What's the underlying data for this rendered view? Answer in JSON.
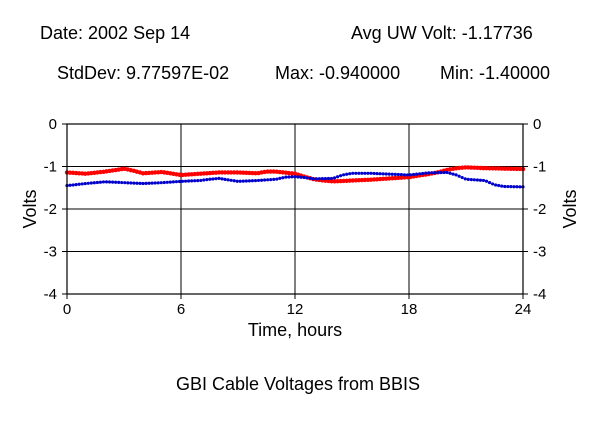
{
  "header": {
    "date": "Date: 2002 Sep 14",
    "avg": "Avg UW Volt: -1.17736",
    "stddev": "StdDev: 9.77597E-02",
    "max": "Max: -0.940000",
    "min": "Min: -1.40000"
  },
  "caption": "GBI Cable Voltages from BBIS",
  "chart_data": {
    "type": "scatter",
    "title": "",
    "xlabel": "Time, hours",
    "ylabel": "Volts",
    "xlim": [
      0,
      24
    ],
    "ylim": [
      -4,
      0
    ],
    "xticks": [
      "0",
      "6",
      "12",
      "18",
      "24"
    ],
    "yticks": [
      "0",
      "-1",
      "-2",
      "-3",
      "-4"
    ],
    "grid": true,
    "colors": {
      "red": "#ff0000",
      "blue": "#0000cc"
    },
    "series": [
      {
        "color": "#ff0000",
        "x": [
          0,
          1,
          2,
          2.6,
          3,
          3.5,
          4,
          5,
          6,
          7,
          8,
          9,
          10,
          10.5,
          11,
          12,
          12.5,
          13,
          13.5,
          14,
          15,
          16,
          17,
          18,
          19,
          19.5,
          20,
          20.5,
          21,
          22,
          23,
          24
        ],
        "y": [
          -1.14,
          -1.17,
          -1.12,
          -1.08,
          -1.05,
          -1.1,
          -1.16,
          -1.13,
          -1.2,
          -1.17,
          -1.14,
          -1.14,
          -1.16,
          -1.12,
          -1.12,
          -1.17,
          -1.24,
          -1.3,
          -1.33,
          -1.35,
          -1.33,
          -1.31,
          -1.28,
          -1.25,
          -1.18,
          -1.14,
          -1.08,
          -1.04,
          -1.02,
          -1.04,
          -1.05,
          -1.06
        ]
      },
      {
        "color": "#0000cc",
        "x": [
          0,
          1,
          2,
          3,
          4,
          5,
          6,
          7,
          7.5,
          8,
          9,
          10,
          11,
          11.5,
          12,
          12.5,
          13,
          14,
          14.5,
          15,
          16,
          17,
          18,
          19,
          20,
          20.5,
          21,
          22,
          22.5,
          23,
          24
        ],
        "y": [
          -1.45,
          -1.4,
          -1.36,
          -1.38,
          -1.4,
          -1.38,
          -1.35,
          -1.33,
          -1.3,
          -1.28,
          -1.35,
          -1.33,
          -1.3,
          -1.25,
          -1.24,
          -1.26,
          -1.29,
          -1.28,
          -1.2,
          -1.16,
          -1.16,
          -1.18,
          -1.2,
          -1.15,
          -1.14,
          -1.2,
          -1.3,
          -1.33,
          -1.43,
          -1.47,
          -1.48
        ]
      }
    ]
  }
}
